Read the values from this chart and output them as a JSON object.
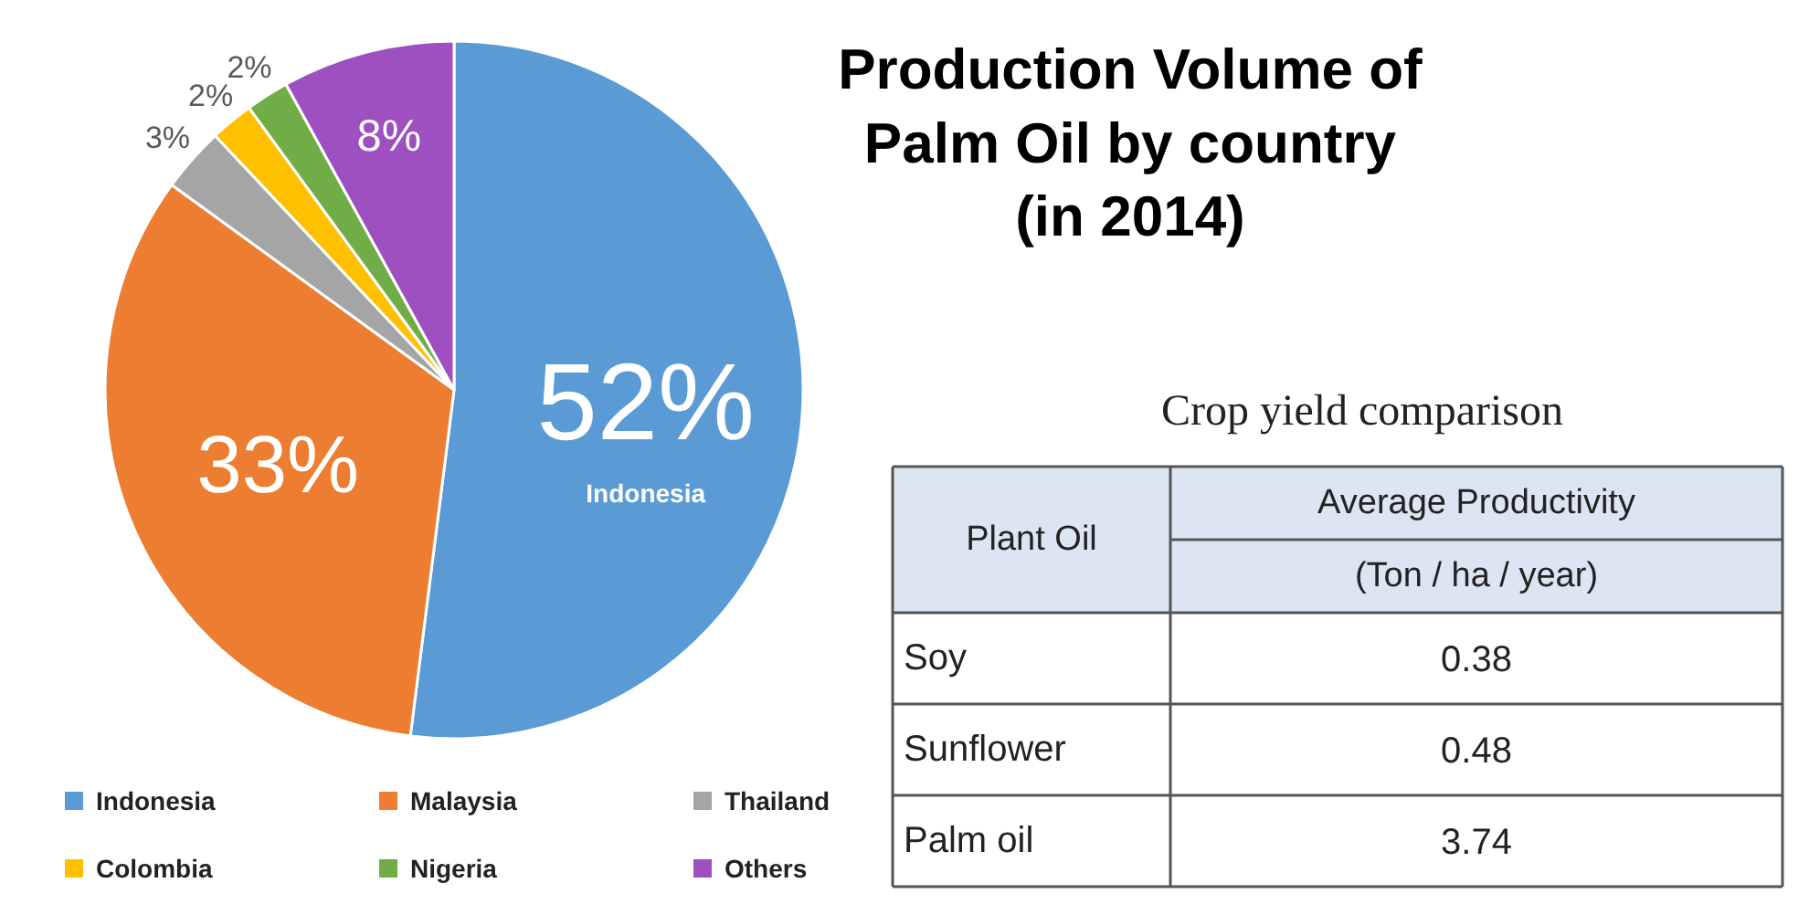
{
  "chart_data": [
    {
      "type": "pie",
      "title": "Production Volume of\nPalm Oil by country\n(in 2014)",
      "categories": [
        "Indonesia",
        "Malaysia",
        "Thailand",
        "Colombia",
        "Nigeria",
        "Others"
      ],
      "values": [
        52,
        33,
        3,
        2,
        2,
        8
      ],
      "colors": [
        "#5b9bd5",
        "#ed7d31",
        "#a5a5a5",
        "#ffc000",
        "#70ad47",
        "#9e4fc0"
      ],
      "legend": "bottom",
      "value_labels": [
        "52%",
        "33%",
        "3%",
        "2%",
        "2%",
        "8%"
      ],
      "annotations": [
        {
          "text": "Indonesia",
          "x": "Indonesia"
        }
      ]
    },
    {
      "type": "other",
      "title": "Crop yield comparison",
      "categories": [
        "Soy",
        "Sunflower",
        "Palm oil"
      ],
      "values": [
        0.38,
        0.48,
        3.74
      ],
      "data_labels": true,
      "annotations": [
        "Plant Oil",
        "Average Productivity",
        "(Ton / ha / year)"
      ]
    }
  ]
}
